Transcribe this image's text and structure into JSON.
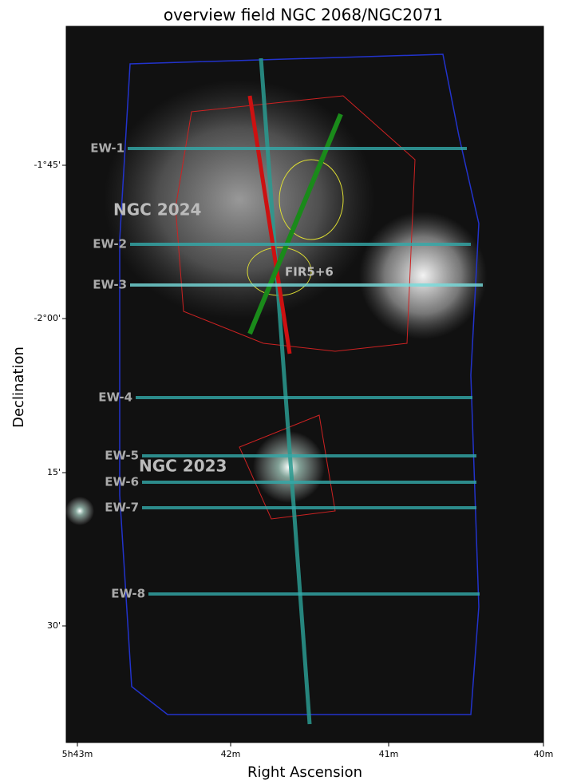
{
  "title": "overview field NGC 2068/NGC2071",
  "x_axis": {
    "label": "Right Ascension",
    "ticks": [
      "5h43m",
      "42m",
      "41m",
      "40m"
    ]
  },
  "y_axis": {
    "label": "Declination",
    "ticks": [
      "-1°45'",
      "-2°00'",
      "15'",
      "30'"
    ]
  },
  "cuts": [
    "EW-1",
    "EW-2",
    "EW-3",
    "EW-4",
    "EW-5",
    "EW-6",
    "EW-7",
    "EW-8"
  ],
  "regions": [
    "NGC 2024",
    "FIR5+6",
    "NGC 2023"
  ]
}
